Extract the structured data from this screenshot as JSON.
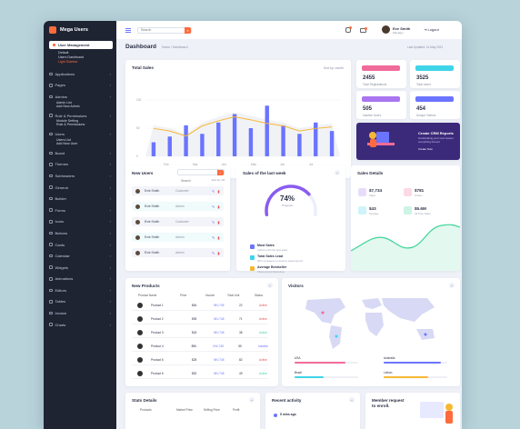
{
  "app": {
    "name": "Mega Users"
  },
  "sidebar": {
    "active": "User Management",
    "active_sub": [
      "Default",
      "Users Dashboard",
      "Light Sidebar"
    ],
    "items": [
      {
        "label": "Applications"
      },
      {
        "label": "Pages"
      },
      {
        "label": "Admins",
        "children": [
          "Admin List",
          "Add New Admin"
        ]
      },
      {
        "label": "Role & Permissions",
        "children": [
          "Module Setting",
          "Role & Permissions"
        ]
      },
      {
        "label": "Users",
        "children": [
          "Users List",
          "Add New User"
        ]
      },
      {
        "label": "Board"
      },
      {
        "label": "Themes"
      },
      {
        "label": "Subheaders"
      },
      {
        "label": "General"
      },
      {
        "label": "Builder"
      },
      {
        "label": "Forms"
      },
      {
        "label": "Icons"
      },
      {
        "label": "Buttons"
      },
      {
        "label": "Cards"
      },
      {
        "label": "Calendar"
      },
      {
        "label": "Widgets"
      },
      {
        "label": "Animations"
      },
      {
        "label": "Editors"
      },
      {
        "label": "Tables"
      },
      {
        "label": "Invoice"
      },
      {
        "label": "Charts"
      }
    ]
  },
  "topbar": {
    "search_placeholder": "Search",
    "user_name": "Eve Smith",
    "user_role": "Manager",
    "logout": "Logout"
  },
  "page": {
    "title": "Dashboard",
    "crumb": "Home / Dashboard",
    "date": "Last Updated: 14 May 2021"
  },
  "total_sales": {
    "title": "Total Sales",
    "filter": "Sort by: month",
    "chart_data": {
      "type": "bar",
      "categories": [
        "Jan",
        "Feb",
        "Mar",
        "Apr",
        "May",
        "Jun",
        "Jul",
        "Aug",
        "Sep",
        "Oct",
        "Nov",
        "Dec"
      ],
      "series": [
        {
          "values": [
            25,
            35,
            55,
            40,
            60,
            75,
            50,
            90,
            55,
            40,
            60,
            45
          ]
        },
        {
          "values": [
            55,
            50,
            40,
            60,
            70,
            78,
            72,
            65,
            60,
            50,
            55,
            58
          ]
        }
      ],
      "ylim": [
        0,
        100
      ],
      "yticks": [
        "100",
        "50",
        "0"
      ],
      "xticks": [
        "Feb",
        "Mar",
        "Apr",
        "May",
        "Jun",
        "Jul"
      ]
    }
  },
  "stats": [
    {
      "value": "2455",
      "label": "Total Registrations",
      "color": "#f06b9a"
    },
    {
      "value": "3525",
      "label": "Total Users",
      "color": "#3fd4e8"
    },
    {
      "value": "505",
      "label": "Inactive Users",
      "color": "#a975f0"
    },
    {
      "value": "454",
      "label": "Unique Visitors",
      "color": "#6b74ff"
    }
  ],
  "promo": {
    "title": "Create CRM Reports",
    "text": "Outstanding your next lesson everything forever",
    "link": "Create Now"
  },
  "new_users": {
    "title": "New Users",
    "search_placeholder": "Search",
    "sort": "Sort by: All",
    "rows": [
      {
        "name": "Evie Smith",
        "role": "Customer"
      },
      {
        "name": "Evie Smith",
        "role": "Admin"
      },
      {
        "name": "Evie Smith",
        "role": "Customer"
      },
      {
        "name": "Evie Smith",
        "role": "Admin"
      },
      {
        "name": "Evie Smith",
        "role": "Admin"
      }
    ]
  },
  "sales_week": {
    "title": "Sales of the last week",
    "percent": "74%",
    "percent_value": 74,
    "caption": "Progress",
    "items": [
      {
        "title": "Most Sales",
        "sub": "Authors with the best sales"
      },
      {
        "title": "Total Sales Lead",
        "sub": "40% increased on week-to-week reports"
      },
      {
        "title": "Average Bestseller",
        "sub": "Pitstop Email Marketing"
      }
    ]
  },
  "sales_details": {
    "title": "Sales Details",
    "items": [
      {
        "value": "$7,734",
        "label": "Sales",
        "color": "#a975f0"
      },
      {
        "value": "$781",
        "label": "Orders",
        "color": "#f06b9a"
      },
      {
        "value": "$43",
        "label": "Average",
        "color": "#3fd4e8"
      },
      {
        "value": "$5.6M",
        "label": "All Time Sales",
        "color": "#3dd598"
      }
    ]
  },
  "new_products": {
    "title": "New Products",
    "headers": [
      "Product Name",
      "Price",
      "Invoice",
      "Total Unit",
      "Status"
    ],
    "rows": [
      {
        "name": "Product 1",
        "price": "$64",
        "invoice": "INV-745",
        "unit": "22",
        "status": "Active",
        "color": "#e84d4d"
      },
      {
        "name": "Product 2",
        "price": "$95",
        "invoice": "INV-745",
        "unit": "71",
        "status": "Active",
        "color": "#e84d4d"
      },
      {
        "name": "Product 3",
        "price": "$18",
        "invoice": "INV-745",
        "unit": "38",
        "status": "Active",
        "color": "#3dd598"
      },
      {
        "name": "Product 4",
        "price": "$96",
        "invoice": "INV-745",
        "unit": "55",
        "status": "Inactive",
        "color": "#6b74ff"
      },
      {
        "name": "Product 5",
        "price": "$28",
        "invoice": "INV-745",
        "unit": "82",
        "status": "Active",
        "color": "#e84d4d"
      },
      {
        "name": "Product 6",
        "price": "$52",
        "invoice": "INV-745",
        "unit": "49",
        "status": "Active",
        "color": "#3dd598"
      }
    ]
  },
  "visitors": {
    "title": "Visitors",
    "legend": [
      {
        "label": "USA",
        "color": "#f06b9a",
        "progress": 0.8
      },
      {
        "label": "Australia",
        "color": "#6b74ff",
        "progress": 0.9
      },
      {
        "label": "Brazil",
        "color": "#3fd4e8",
        "progress": 0.45
      },
      {
        "label": "Lisbon",
        "color": "#f7b733",
        "progress": 0.7
      }
    ]
  },
  "bottom": {
    "stats_details": {
      "title": "Stats Details",
      "headers": [
        "Products",
        "Market Price",
        "Selling Price",
        "Profit"
      ]
    },
    "recent": {
      "title": "Recent activity",
      "item": "5 mins ago"
    },
    "member": {
      "title": "Member request to enroll."
    }
  }
}
